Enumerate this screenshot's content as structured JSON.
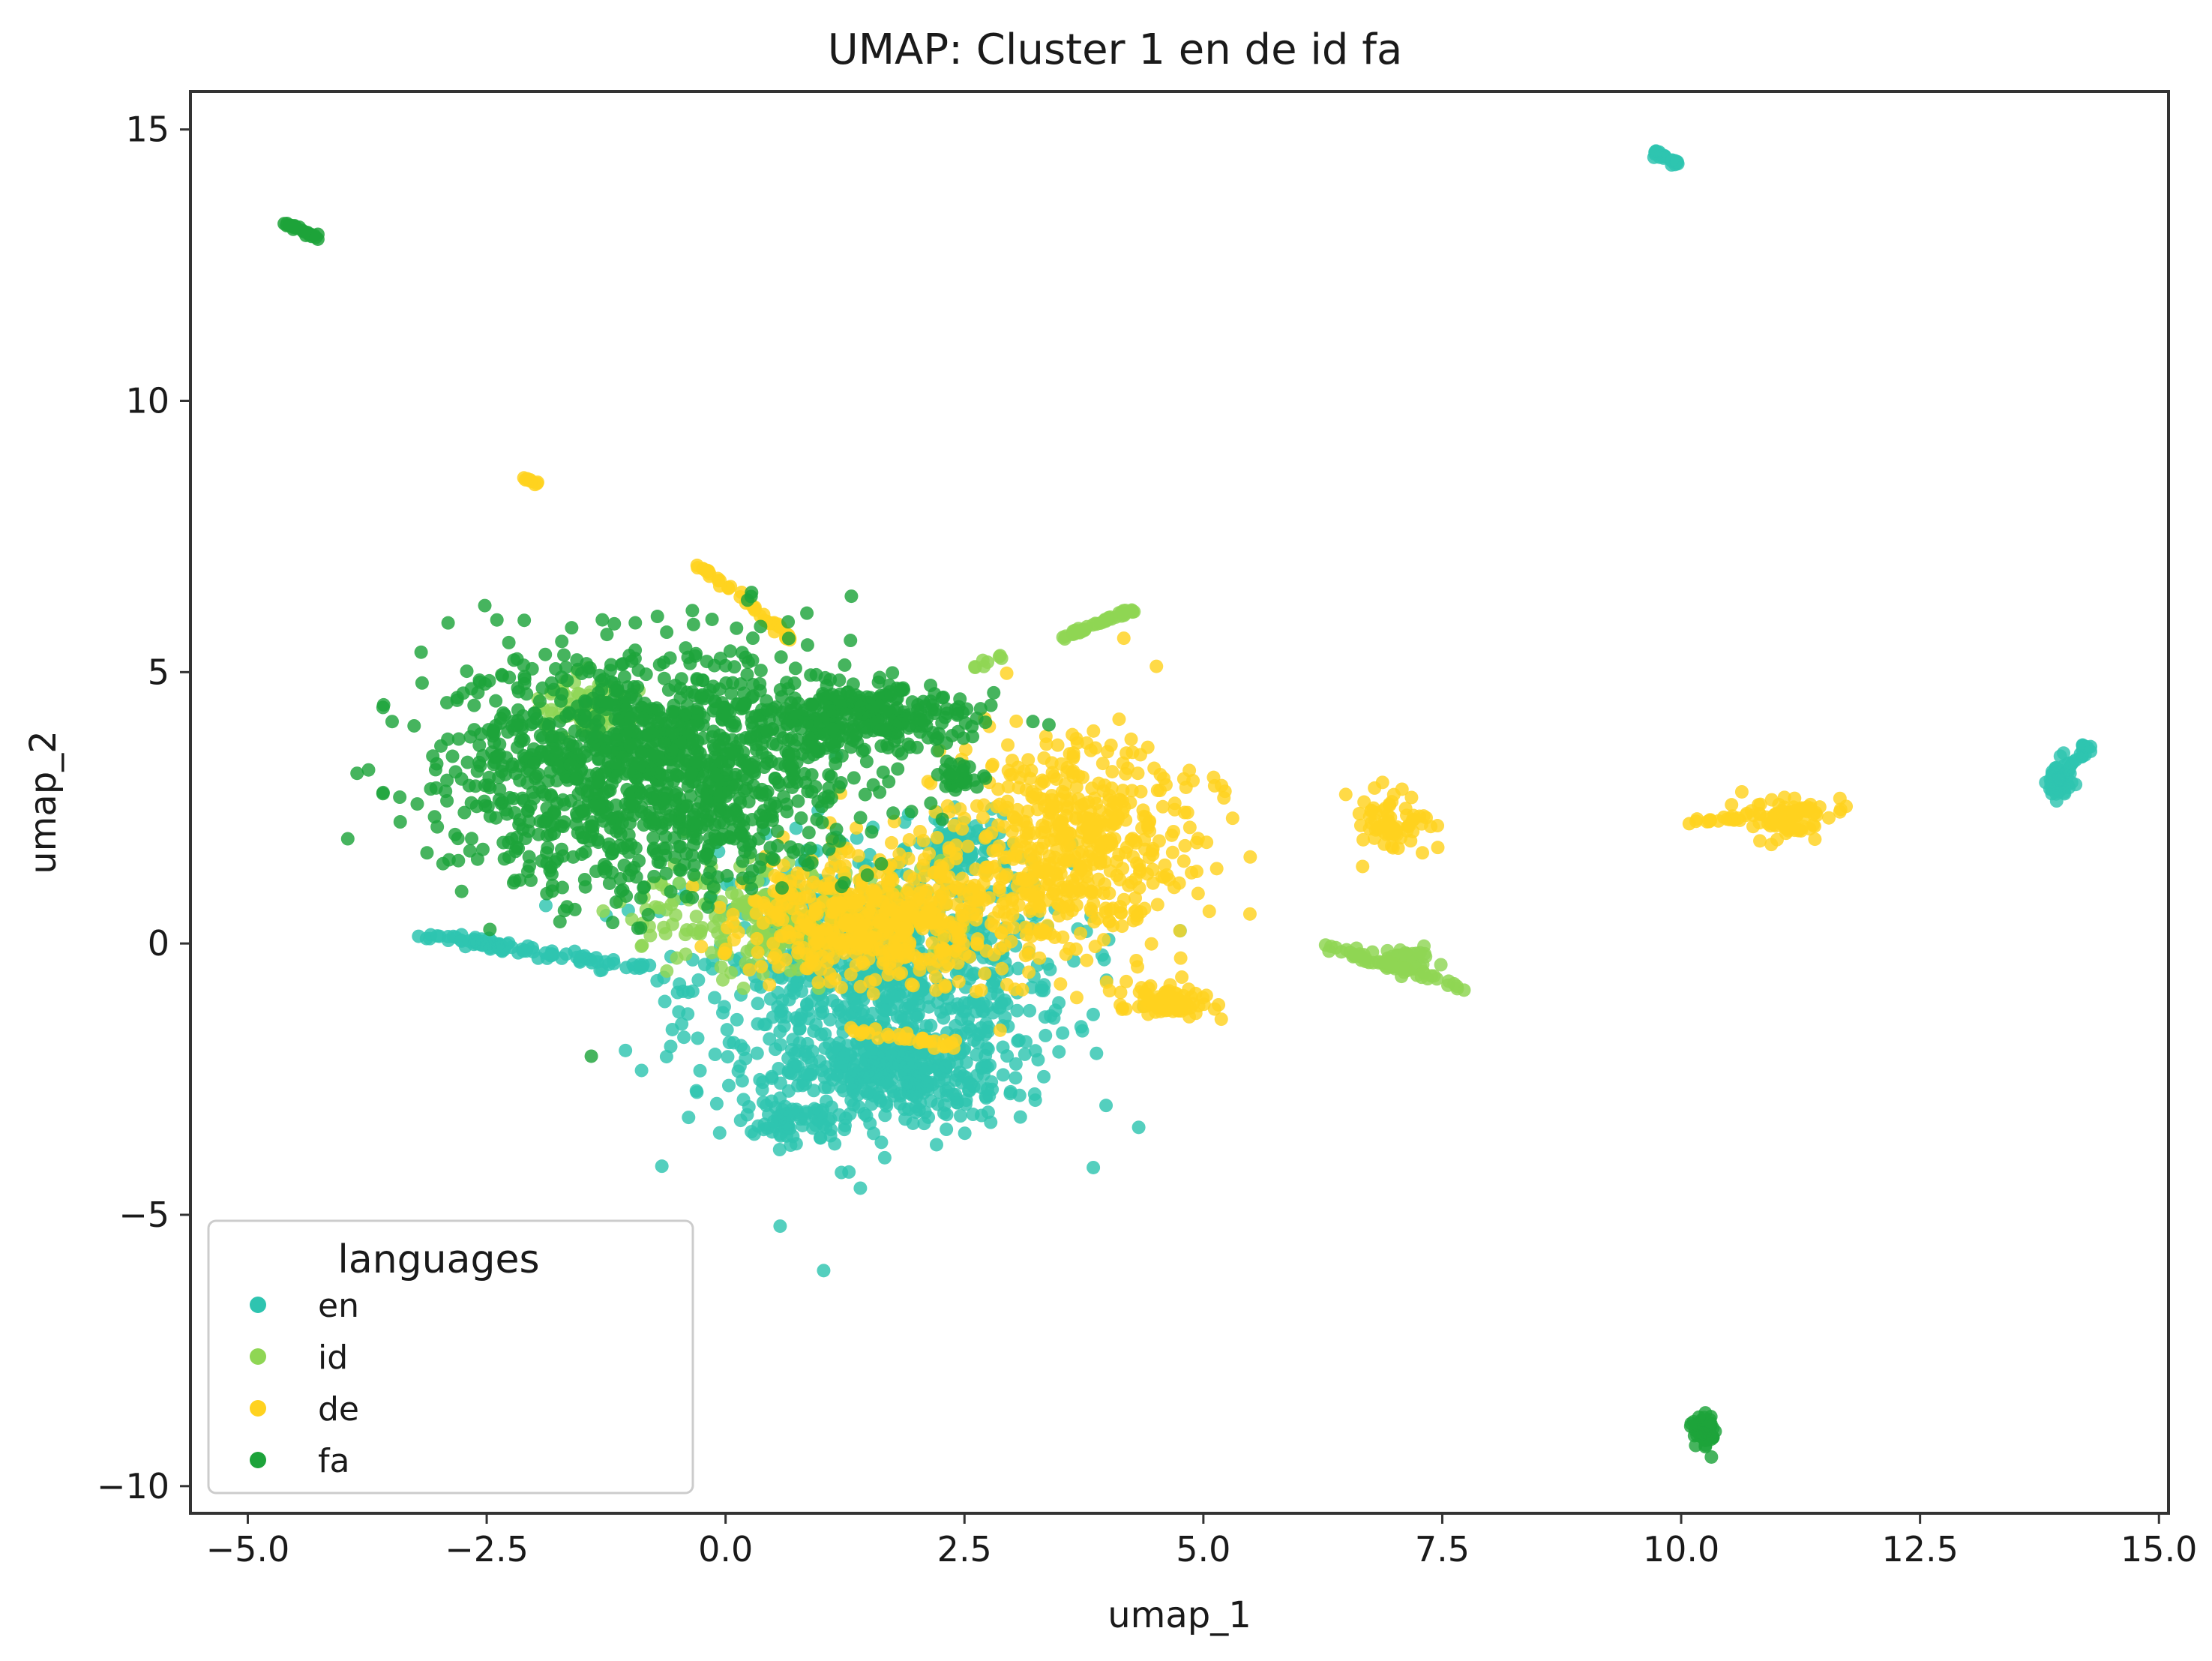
{
  "chart_data": {
    "type": "scatter",
    "title": "UMAP: Cluster 1 en de id fa",
    "xlabel": "umap_1",
    "ylabel": "umap_2",
    "xlim": [
      -5.6,
      15.1
    ],
    "ylim": [
      -10.5,
      15.7
    ],
    "xticks": [
      -5.0,
      -2.5,
      0.0,
      2.5,
      5.0,
      7.5,
      10.0,
      12.5,
      15.0
    ],
    "xtick_labels": [
      "−5.0",
      "−2.5",
      "0.0",
      "2.5",
      "5.0",
      "7.5",
      "10.0",
      "12.5",
      "15.0"
    ],
    "yticks": [
      15,
      10,
      5,
      0,
      -5,
      -10
    ],
    "ytick_labels": [
      "15",
      "10",
      "5",
      "0",
      "−5",
      "−10"
    ],
    "grid": false,
    "legend": {
      "title": "languages",
      "position": "bottom-left"
    },
    "series": [
      {
        "name": "en",
        "color": "#2EC4B0",
        "clusters": [
          {
            "cx": 1.6,
            "cy": -0.8,
            "rx": 2.0,
            "ry": 2.6,
            "n": 900
          },
          {
            "cx": 1.8,
            "cy": -2.4,
            "rx": 1.1,
            "ry": 0.7,
            "n": 250
          },
          {
            "cx": 0.7,
            "cy": -3.3,
            "rx": 0.4,
            "ry": 0.35,
            "n": 60
          },
          {
            "cx": 2.5,
            "cy": 1.7,
            "rx": 0.5,
            "ry": 0.6,
            "n": 80
          },
          {
            "cx": 13.95,
            "cy": 3.0,
            "rx": 0.12,
            "ry": 0.35,
            "n": 70
          }
        ],
        "lines": [
          {
            "x1": -3.2,
            "y1": 0.15,
            "x2": -0.8,
            "y2": -0.45,
            "n": 90,
            "w": 0.12
          },
          {
            "x1": 9.7,
            "y1": 14.6,
            "x2": 9.95,
            "y2": 14.35,
            "n": 25,
            "w": 0.06
          },
          {
            "x1": 13.95,
            "y1": 3.0,
            "x2": 14.25,
            "y2": 3.65,
            "n": 30,
            "w": 0.08
          }
        ]
      },
      {
        "name": "id",
        "color": "#8FD654",
        "clusters": [
          {
            "cx": 0.5,
            "cy": 0.5,
            "rx": 1.4,
            "ry": 1.0,
            "n": 220
          },
          {
            "cx": -1.5,
            "cy": 4.3,
            "rx": 0.5,
            "ry": 0.6,
            "n": 70
          },
          {
            "cx": 7.1,
            "cy": -0.3,
            "rx": 0.3,
            "ry": 0.2,
            "n": 60
          }
        ],
        "lines": [
          {
            "x1": 3.5,
            "y1": 5.6,
            "x2": 4.25,
            "y2": 6.15,
            "n": 45,
            "w": 0.06
          },
          {
            "x1": 2.6,
            "y1": 5.1,
            "x2": 2.9,
            "y2": 5.3,
            "n": 8,
            "w": 0.05
          },
          {
            "x1": 6.3,
            "y1": -0.05,
            "x2": 7.7,
            "y2": -0.8,
            "n": 55,
            "w": 0.1
          }
        ]
      },
      {
        "name": "de",
        "color": "#FFD21F",
        "clusters": [
          {
            "cx": 3.6,
            "cy": 1.8,
            "rx": 1.3,
            "ry": 2.0,
            "n": 550
          },
          {
            "cx": 1.6,
            "cy": 0.5,
            "rx": 1.4,
            "ry": 1.2,
            "n": 500
          },
          {
            "cx": 4.6,
            "cy": -1.1,
            "rx": 0.5,
            "ry": 0.3,
            "n": 80
          },
          {
            "cx": 7.0,
            "cy": 2.2,
            "rx": 0.35,
            "ry": 0.55,
            "n": 70
          },
          {
            "cx": 11.1,
            "cy": 2.3,
            "rx": 0.45,
            "ry": 0.35,
            "n": 90
          }
        ],
        "lines": [
          {
            "x1": -0.3,
            "y1": 7.0,
            "x2": 0.7,
            "y2": 5.6,
            "n": 45,
            "w": 0.06
          },
          {
            "x1": -2.15,
            "y1": 8.6,
            "x2": -1.95,
            "y2": 8.45,
            "n": 10,
            "w": 0.04
          },
          {
            "x1": 10.0,
            "y1": 2.25,
            "x2": 10.6,
            "y2": 2.3,
            "n": 15,
            "w": 0.05
          },
          {
            "x1": 1.3,
            "y1": -1.6,
            "x2": 2.4,
            "y2": -1.9,
            "n": 30,
            "w": 0.12
          }
        ]
      },
      {
        "name": "fa",
        "color": "#1DA33A",
        "clusters": [
          {
            "cx": -0.8,
            "cy": 3.2,
            "rx": 2.1,
            "ry": 2.2,
            "n": 1300
          },
          {
            "cx": 1.4,
            "cy": 4.2,
            "rx": 1.2,
            "ry": 0.6,
            "n": 300
          },
          {
            "cx": 2.5,
            "cy": 3.0,
            "rx": 0.25,
            "ry": 0.3,
            "n": 30
          },
          {
            "cx": 10.25,
            "cy": -9.0,
            "rx": 0.12,
            "ry": 0.3,
            "n": 60
          }
        ],
        "lines": [
          {
            "x1": -4.65,
            "y1": 13.3,
            "x2": -4.25,
            "y2": 13.0,
            "n": 25,
            "w": 0.05
          }
        ]
      }
    ]
  }
}
